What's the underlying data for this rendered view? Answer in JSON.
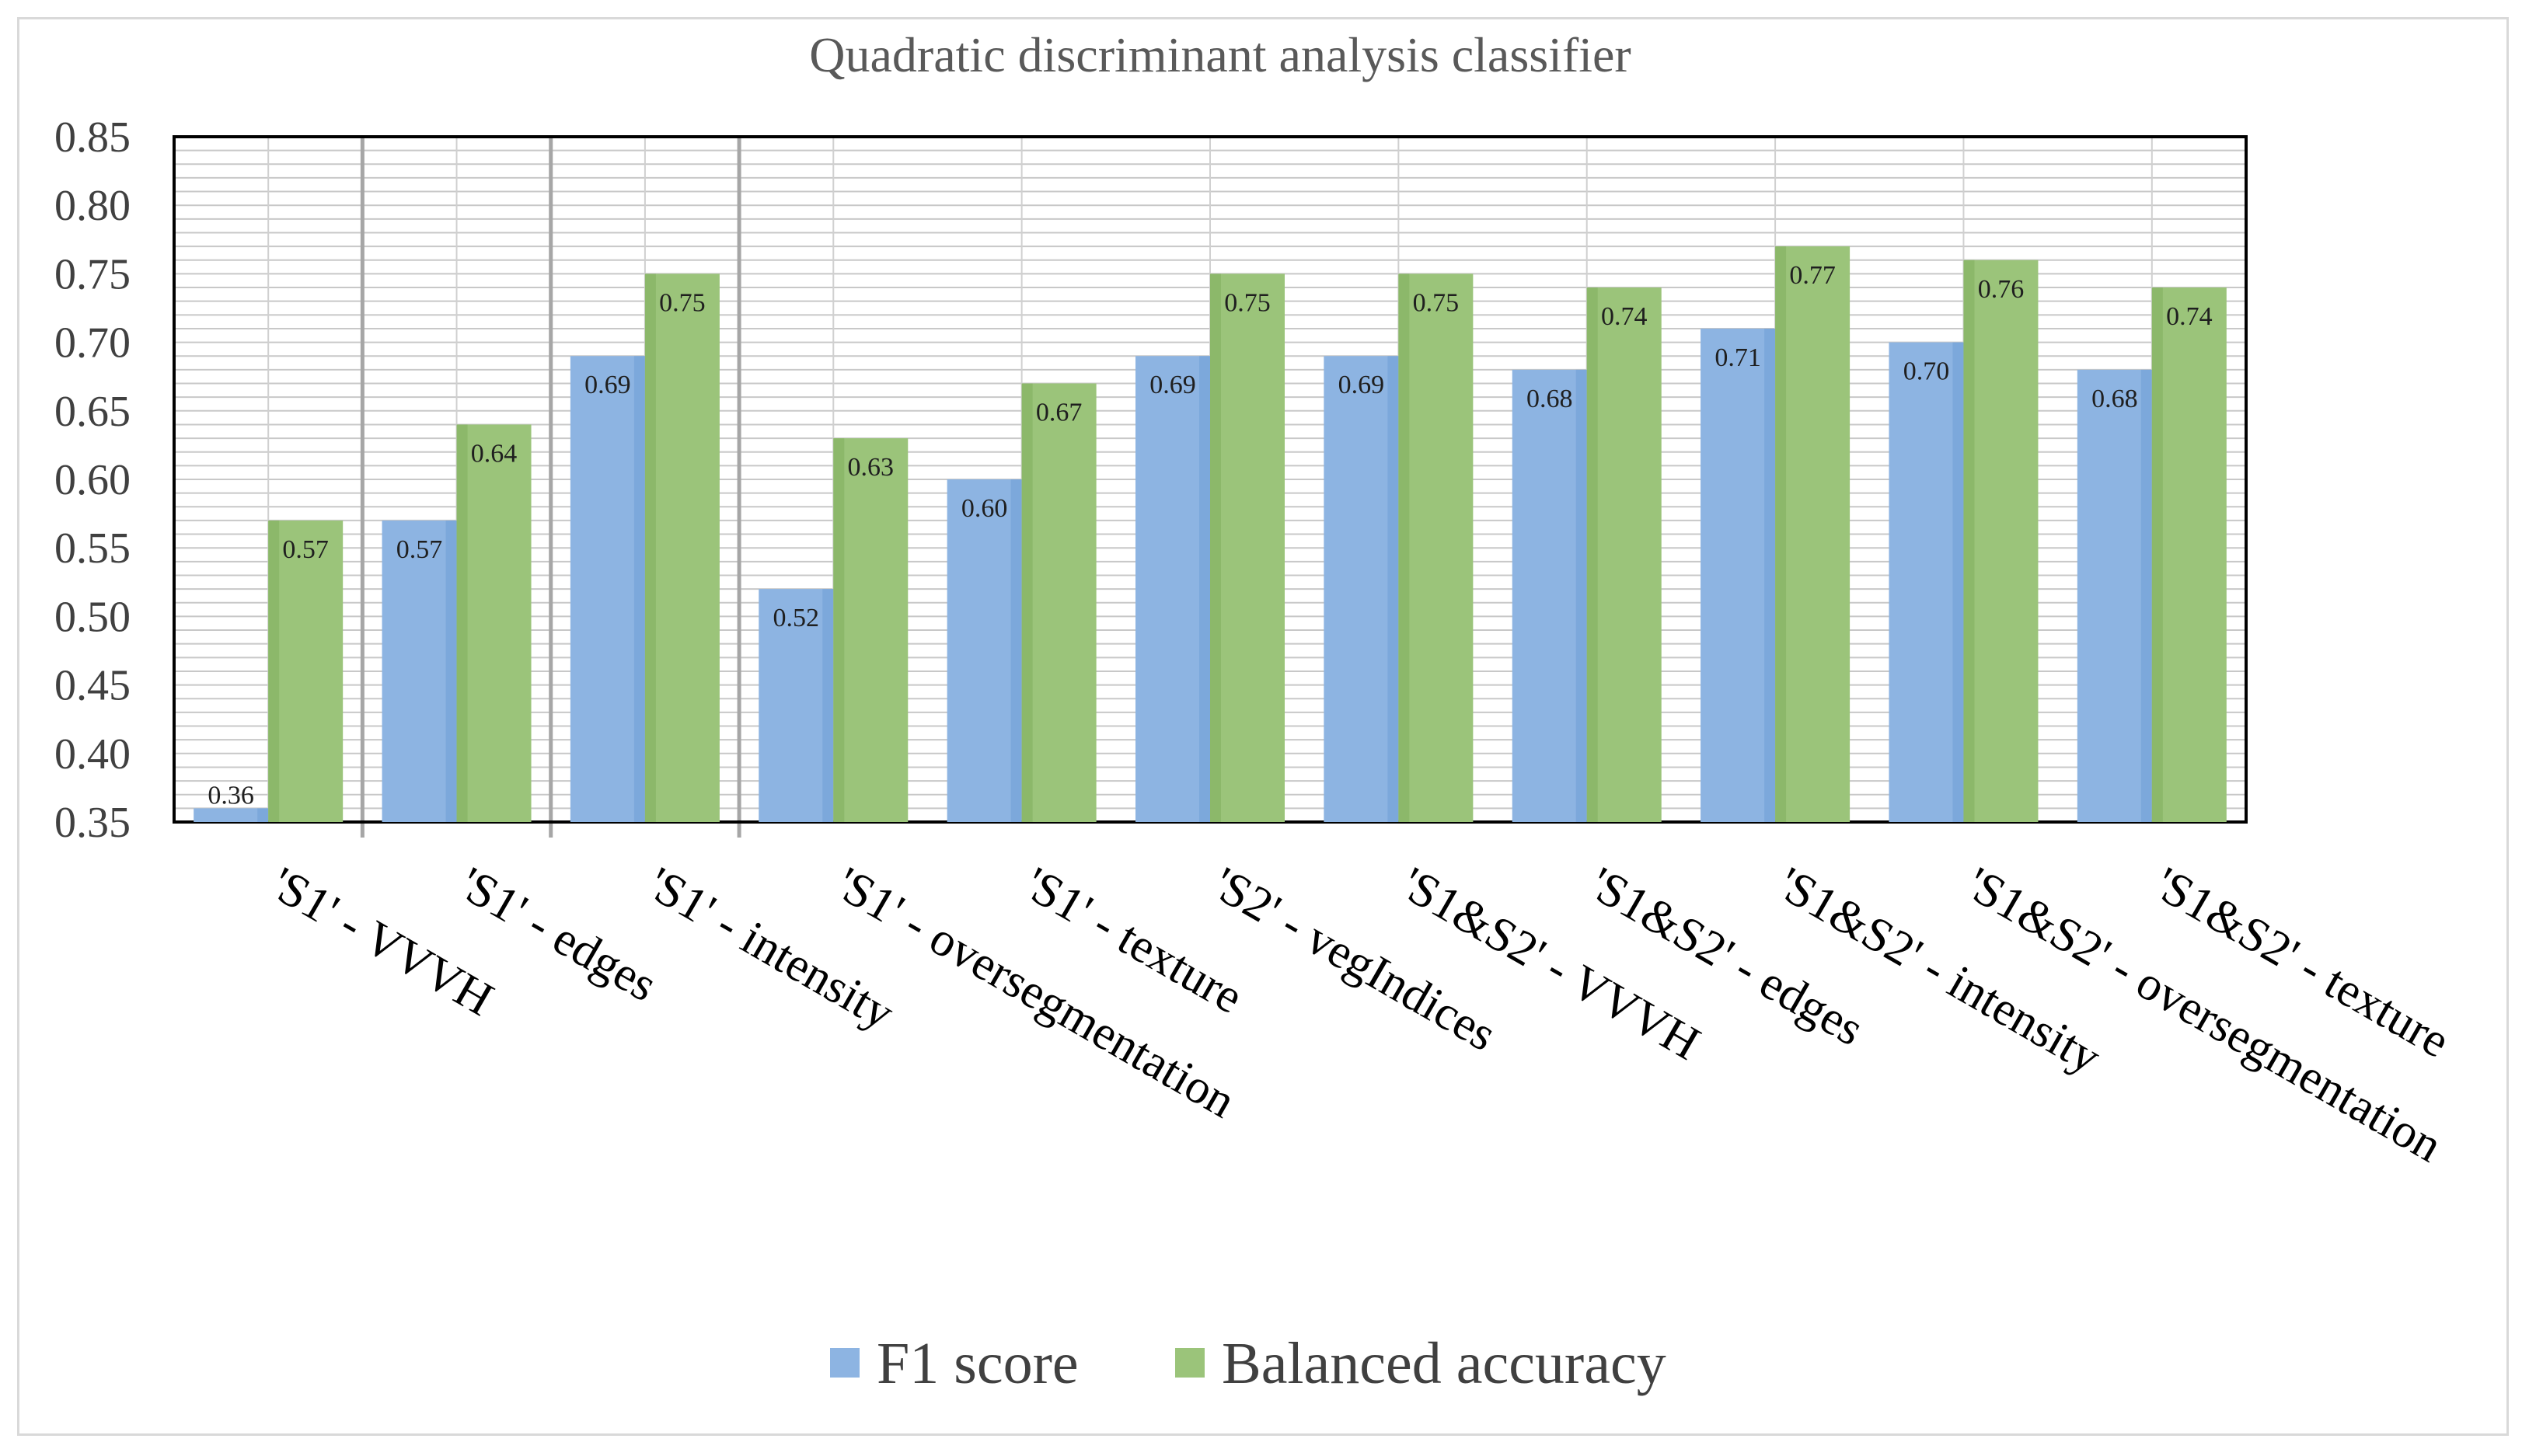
{
  "chart_data": {
    "type": "bar",
    "title": "Quadratic discriminant analysis classifier",
    "xlabel": "",
    "ylabel": "",
    "ylim": [
      0.35,
      0.85
    ],
    "y_ticks": [
      "0.35",
      "0.40",
      "0.45",
      "0.50",
      "0.55",
      "0.60",
      "0.65",
      "0.70",
      "0.75",
      "0.80",
      "0.85"
    ],
    "grid": true,
    "legend_position": "bottom",
    "categories": [
      "'S1' - VVVH",
      "'S1' - edges",
      "'S1' - intensity",
      "'S1' - oversegmentation",
      "'S1' - texture",
      "'S2' - vegIndices",
      "'S1&S2' - VVVH",
      "'S1&S2' - edges",
      "'S1&S2' - intensity",
      "'S1&S2' - oversegmentation",
      "'S1&S2' - texture"
    ],
    "series": [
      {
        "name": "F1 score",
        "color": "#8db4e2",
        "values": [
          0.36,
          0.57,
          0.69,
          0.52,
          0.6,
          0.69,
          0.69,
          0.68,
          0.71,
          0.7,
          0.68
        ],
        "labels": [
          "0.36",
          "0.57",
          "0.69",
          "0.52",
          "0.60",
          "0.69",
          "0.69",
          "0.68",
          "0.71",
          "0.70",
          "0.68"
        ]
      },
      {
        "name": "Balanced accuracy",
        "color": "#9bc47a",
        "values": [
          0.57,
          0.64,
          0.75,
          0.63,
          0.67,
          0.75,
          0.75,
          0.74,
          0.77,
          0.76,
          0.74
        ],
        "labels": [
          "0.57",
          "0.64",
          "0.75",
          "0.63",
          "0.67",
          "0.75",
          "0.75",
          "0.74",
          "0.77",
          "0.76",
          "0.74"
        ]
      }
    ]
  }
}
